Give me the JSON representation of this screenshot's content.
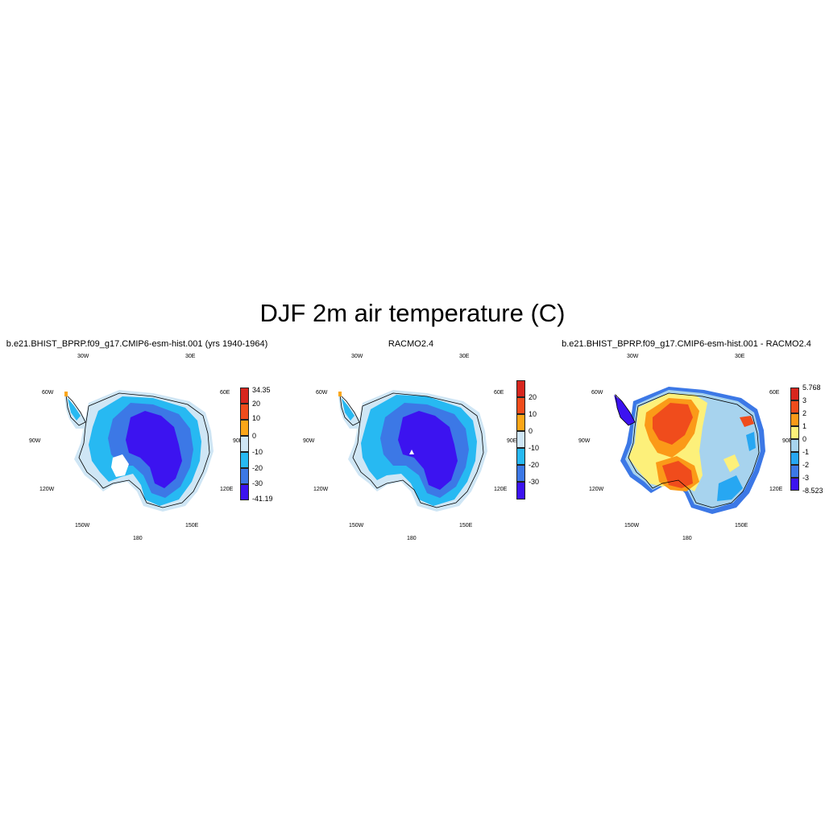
{
  "figure": {
    "title": "DJF 2m air temperature (C)"
  },
  "longitude_labels": {
    "lon_30w": "30W",
    "lon_30e": "30E",
    "lon_60w": "60W",
    "lon_60e": "60E",
    "lon_90w": "90W",
    "lon_90e": "90E",
    "lon_120w": "120W",
    "lon_120e": "120E",
    "lon_150w": "150W",
    "lon_150e": "150E",
    "lon_180": "180"
  },
  "panels": [
    {
      "title": "b.e21.BHIST_BPRP.f09_g17.CMIP6-esm-hist.001 (yrs 1940-1964)",
      "colorbar": {
        "labels": [
          "34.35",
          "20",
          "10",
          "0",
          "-10",
          "-20",
          "-30",
          "-41.19"
        ],
        "colors": [
          "#d7261e",
          "#f04c1c",
          "#fba618",
          "#cfe6f5",
          "#27b9f2",
          "#3c78e6",
          "#3c13f0"
        ]
      }
    },
    {
      "title": "RACMO2.4",
      "colorbar": {
        "labels": [
          "20",
          "10",
          "0",
          "-10",
          "-20",
          "-30"
        ],
        "colors": [
          "#d7261e",
          "#f04c1c",
          "#fba618",
          "#cfe6f5",
          "#27b9f2",
          "#3c78e6",
          "#3c13f0"
        ]
      }
    },
    {
      "title": "b.e21.BHIST_BPRP.f09_g17.CMIP6-esm-hist.001 - RACMO2.4",
      "colorbar": {
        "labels": [
          "5.768",
          "3",
          "2",
          "1",
          "0",
          "-1",
          "-2",
          "-3",
          "-8.523"
        ],
        "colors": [
          "#d7261e",
          "#f04c1c",
          "#fb9a18",
          "#fdf07a",
          "#a7d3ee",
          "#27a7f2",
          "#3c78e6",
          "#3c13f0"
        ]
      }
    }
  ]
}
